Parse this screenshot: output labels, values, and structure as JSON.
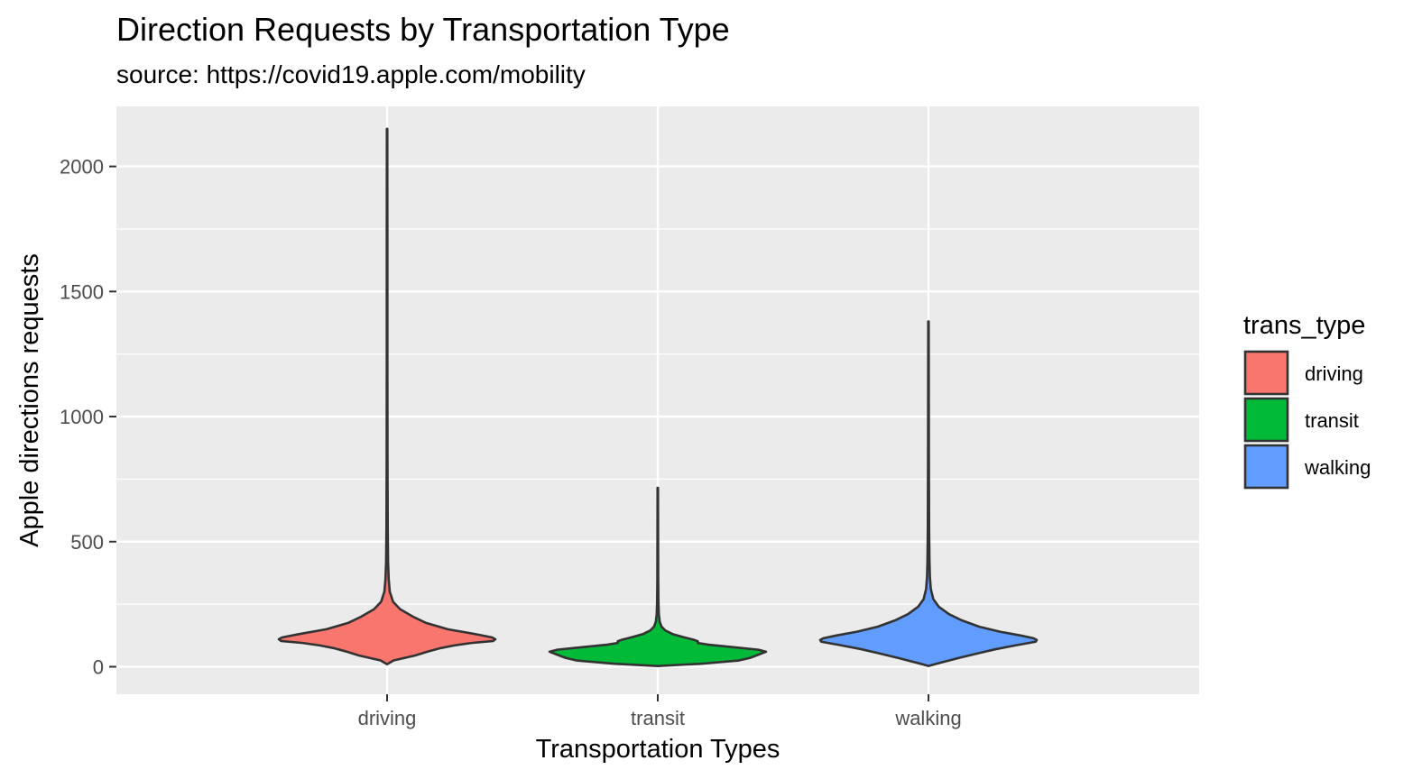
{
  "chart_data": {
    "type": "violin",
    "title": "Direction Requests by Transportation Type",
    "subtitle": "source: https://covid19.apple.com/mobility",
    "xlabel": "Transportation Types",
    "ylabel": "Apple directions requests",
    "categories": [
      "driving",
      "transit",
      "walking"
    ],
    "ylim": [
      -110,
      2240
    ],
    "y_ticks": [
      0,
      500,
      1000,
      1500,
      2000
    ],
    "y_tick_labels": [
      "0",
      "500",
      "1000",
      "1500",
      "2000"
    ],
    "grid": true,
    "legend": {
      "title": "trans_type",
      "position": "right",
      "entries": [
        "driving",
        "transit",
        "walking"
      ]
    },
    "colors": {
      "driving": "#F8766D",
      "transit": "#00BA38",
      "walking": "#619CFF",
      "outline": "#333333",
      "panel": "#EBEBEB",
      "grid": "#FFFFFF"
    },
    "series": [
      {
        "name": "driving",
        "min": 10,
        "max": 2150,
        "profile": [
          [
            10,
            0.0
          ],
          [
            25,
            0.06
          ],
          [
            45,
            0.26
          ],
          [
            60,
            0.37
          ],
          [
            75,
            0.5
          ],
          [
            85,
            0.62
          ],
          [
            95,
            0.78
          ],
          [
            103,
            0.98
          ],
          [
            110,
            1.0
          ],
          [
            117,
            0.97
          ],
          [
            130,
            0.82
          ],
          [
            150,
            0.56
          ],
          [
            175,
            0.36
          ],
          [
            200,
            0.24
          ],
          [
            230,
            0.12
          ],
          [
            260,
            0.055
          ],
          [
            300,
            0.025
          ],
          [
            350,
            0.015
          ],
          [
            420,
            0.009
          ],
          [
            550,
            0.006
          ],
          [
            800,
            0.004
          ],
          [
            1200,
            0.003
          ],
          [
            1700,
            0.003
          ],
          [
            2150,
            0.002
          ]
        ]
      },
      {
        "name": "transit",
        "min": 3,
        "max": 715,
        "profile": [
          [
            3,
            0.0
          ],
          [
            12,
            0.4
          ],
          [
            25,
            0.75
          ],
          [
            35,
            0.85
          ],
          [
            50,
            0.94
          ],
          [
            60,
            1.0
          ],
          [
            68,
            0.93
          ],
          [
            78,
            0.7
          ],
          [
            88,
            0.47
          ],
          [
            95,
            0.37
          ],
          [
            102,
            0.37
          ],
          [
            108,
            0.33
          ],
          [
            118,
            0.24
          ],
          [
            130,
            0.14
          ],
          [
            145,
            0.07
          ],
          [
            160,
            0.035
          ],
          [
            180,
            0.018
          ],
          [
            210,
            0.01
          ],
          [
            260,
            0.006
          ],
          [
            350,
            0.004
          ],
          [
            500,
            0.003
          ],
          [
            715,
            0.002
          ]
        ]
      },
      {
        "name": "walking",
        "min": 3,
        "max": 1380,
        "profile": [
          [
            3,
            0.0
          ],
          [
            15,
            0.1
          ],
          [
            35,
            0.28
          ],
          [
            55,
            0.47
          ],
          [
            70,
            0.62
          ],
          [
            85,
            0.8
          ],
          [
            100,
            0.99
          ],
          [
            107,
            1.0
          ],
          [
            114,
            0.97
          ],
          [
            125,
            0.85
          ],
          [
            140,
            0.66
          ],
          [
            160,
            0.47
          ],
          [
            185,
            0.31
          ],
          [
            210,
            0.19
          ],
          [
            240,
            0.095
          ],
          [
            270,
            0.045
          ],
          [
            310,
            0.022
          ],
          [
            360,
            0.013
          ],
          [
            430,
            0.009
          ],
          [
            550,
            0.006
          ],
          [
            800,
            0.004
          ],
          [
            1100,
            0.003
          ],
          [
            1380,
            0.002
          ]
        ]
      }
    ]
  }
}
